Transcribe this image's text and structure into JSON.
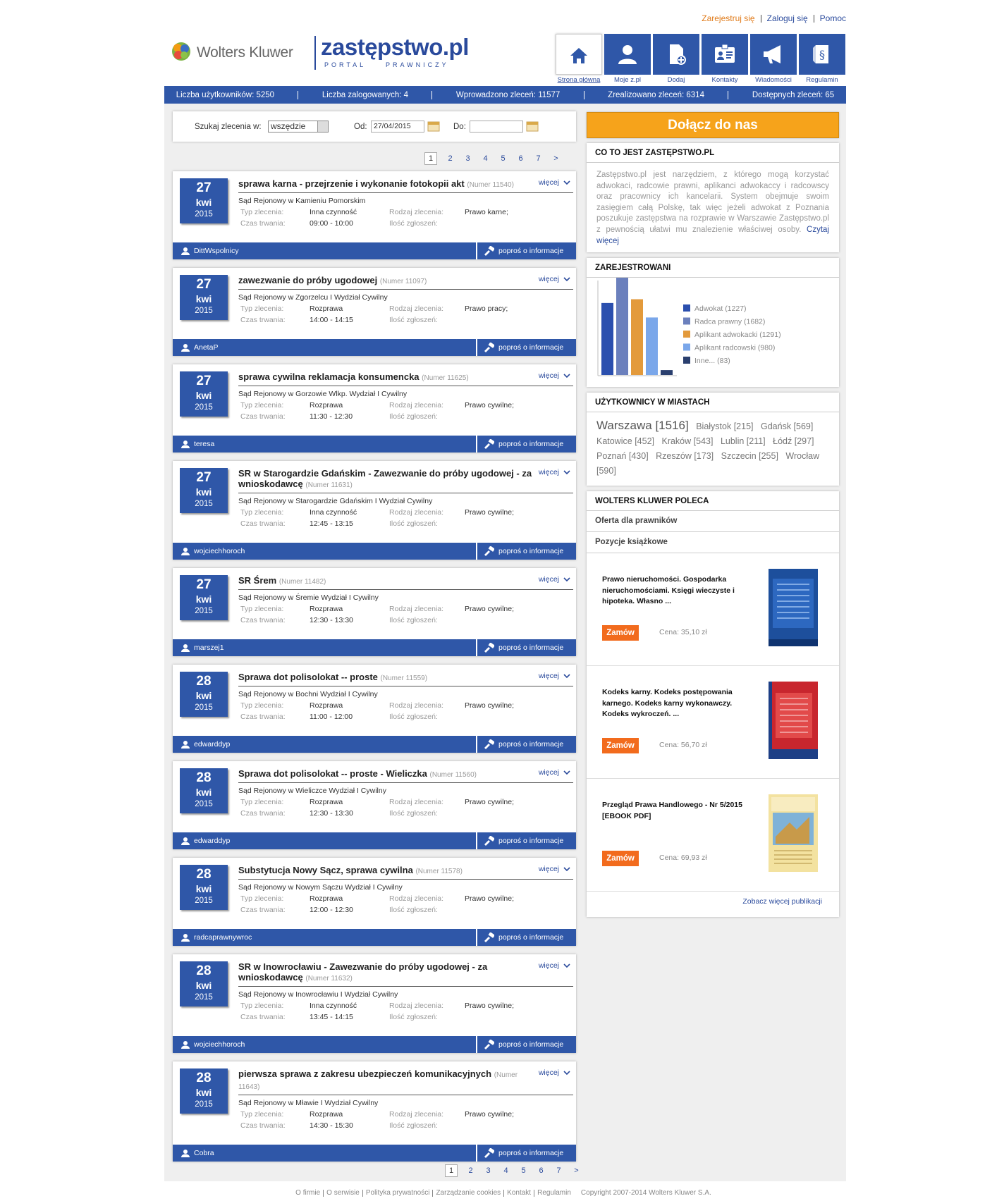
{
  "header": {
    "links": [
      "Zarejestruj się",
      "Zaloguj się",
      "Pomoc"
    ],
    "brand": "Wolters Kluwer",
    "site": "zastępstwo.pl",
    "tagline_left": "PORTAL",
    "tagline_right": "PRAWNICZY",
    "nav": [
      "Strona główna",
      "Moje z.pl",
      "Dodaj",
      "Kontakty",
      "Wiadomości",
      "Regulamin"
    ]
  },
  "stats": [
    "Liczba użytkowników: 5250",
    "Liczba zalogowanych: 4",
    "Wprowadzono zleceń: 11577",
    "Zrealizowano zleceń: 6314",
    "Dostępnych zleceń: 65"
  ],
  "search": {
    "label": "Szukaj zlecenia w:",
    "scope": "wszędzie",
    "from_label": "Od:",
    "from": "27/04/2015",
    "to_label": "Do:"
  },
  "pagination": [
    "1",
    "2",
    "3",
    "4",
    "5",
    "6",
    "7",
    ">"
  ],
  "field_labels": {
    "type": "Typ zlecenia:",
    "kind": "Rodzaj zlecenia:",
    "duration": "Czas trwania:",
    "count": "Ilość zgłoszeń:",
    "more": "więcej",
    "ask": "poproś o informacje"
  },
  "listings": [
    {
      "day": "27",
      "month": "kwi",
      "year": "2015",
      "title": "sprawa karna - przejrzenie i wykonanie fotokopii akt",
      "number": "(Numer 11540)",
      "court": "Sąd Rejonowy w Kamieniu Pomorskim",
      "type": "Inna czynność",
      "kind": "Prawo karne;",
      "time": "09:00 - 10:00",
      "user": "DittWspolnicy"
    },
    {
      "day": "27",
      "month": "kwi",
      "year": "2015",
      "title": "zawezwanie do próby ugodowej",
      "number": "(Numer 11097)",
      "court": "Sąd Rejonowy w Zgorzelcu I Wydział Cywilny",
      "type": "Rozprawa",
      "kind": "Prawo pracy;",
      "time": "14:00 - 14:15",
      "user": "AnetaP"
    },
    {
      "day": "27",
      "month": "kwi",
      "year": "2015",
      "title": "sprawa cywilna reklamacja konsumencka",
      "number": "(Numer 11625)",
      "court": "Sąd Rejonowy w Gorzowie Wlkp. Wydział I Cywilny",
      "type": "Rozprawa",
      "kind": "Prawo cywilne;",
      "time": "11:30 - 12:30",
      "user": "teresa"
    },
    {
      "day": "27",
      "month": "kwi",
      "year": "2015",
      "title": "SR w Starogardzie Gdańskim - Zawezwanie do próby ugodowej - za wnioskodawcę",
      "number": "(Numer 11631)",
      "court": "Sąd Rejonowy w Starogardzie Gdańskim I Wydział Cywilny",
      "type": "Inna czynność",
      "kind": "Prawo cywilne;",
      "time": "12:45 - 13:15",
      "user": "wojciechhoroch"
    },
    {
      "day": "27",
      "month": "kwi",
      "year": "2015",
      "title": "SR Śrem",
      "number": "(Numer 11482)",
      "court": "Sąd Rejonowy w Śremie Wydział I Cywilny",
      "type": "Rozprawa",
      "kind": "Prawo cywilne;",
      "time": "12:30 - 13:30",
      "user": "marszej1"
    },
    {
      "day": "28",
      "month": "kwi",
      "year": "2015",
      "title": "Sprawa dot polisolokat -- proste",
      "number": "(Numer 11559)",
      "court": "Sąd Rejonowy w Bochni Wydział I Cywilny",
      "type": "Rozprawa",
      "kind": "Prawo cywilne;",
      "time": "11:00 - 12:00",
      "user": "edwarddyp"
    },
    {
      "day": "28",
      "month": "kwi",
      "year": "2015",
      "title": "Sprawa dot polisolokat -- proste - Wieliczka",
      "number": "(Numer 11560)",
      "court": "Sąd Rejonowy w Wieliczce Wydział I Cywilny",
      "type": "Rozprawa",
      "kind": "Prawo cywilne;",
      "time": "12:30 - 13:30",
      "user": "edwarddyp"
    },
    {
      "day": "28",
      "month": "kwi",
      "year": "2015",
      "title": "Substytucja Nowy Sącz, sprawa cywilna",
      "number": "(Numer 11578)",
      "court": "Sąd Rejonowy w Nowym Sączu Wydział I Cywilny",
      "type": "Rozprawa",
      "kind": "Prawo cywilne;",
      "time": "12:00 - 12:30",
      "user": "radcaprawnywroc"
    },
    {
      "day": "28",
      "month": "kwi",
      "year": "2015",
      "title": "SR w Inowrocławiu - Zawezwanie do próby ugodowej - za wnioskodawcę",
      "number": "(Numer 11632)",
      "court": "Sąd Rejonowy w Inowrocławiu I Wydział Cywilny",
      "type": "Inna czynność",
      "kind": "Prawo cywilne;",
      "time": "13:45 - 14:15",
      "user": "wojciechhoroch"
    },
    {
      "day": "28",
      "month": "kwi",
      "year": "2015",
      "title": "pierwsza sprawa z zakresu ubezpieczeń komunikacyjnych",
      "number": "(Numer 11643)",
      "court": "Sąd Rejonowy w Mławie I Wydział Cywilny",
      "type": "Rozprawa",
      "kind": "Prawo cywilne;",
      "time": "14:30 - 15:30",
      "user": "Cobra"
    }
  ],
  "sidebar": {
    "join": "Dołącz do nas",
    "about": {
      "title": "CO TO JEST ZASTĘPSTWO.PL",
      "text": "Zastępstwo.pl jest narzędziem, z którego mogą korzystać adwokaci, radcowie prawni, aplikanci adwokaccy i radcowscy oraz pracownicy ich kancelarii. System obejmuje swoim zasięgiem całą Polskę, tak więc jeżeli adwokat z Poznania poszukuje zastępstwa na rozprawie w Warszawie Zastępstwo.pl z pewnością ułatwi mu znalezienie właściwej osoby.",
      "link": "Czytaj więcej"
    },
    "registered": {
      "title": "ZAREJESTROWANI",
      "series": [
        {
          "label": "Adwokat (1227)",
          "value": 1227,
          "color": "#2b4fae"
        },
        {
          "label": "Radca prawny (1682)",
          "value": 1682,
          "color": "#6b80bd"
        },
        {
          "label": "Aplikant adwokacki (1291)",
          "value": 1291,
          "color": "#e39a3b"
        },
        {
          "label": "Aplikant radcowski (980)",
          "value": 980,
          "color": "#7aa7ea"
        },
        {
          "label": "Inne... (83)",
          "value": 83,
          "color": "#2a3f6e"
        }
      ]
    },
    "cities": {
      "title": "UŻYTKOWNICY W MIASTACH",
      "items": [
        "Warszawa [1516]",
        "Białystok [215]",
        "Gdańsk [569]",
        "Katowice [452]",
        "Kraków [543]",
        "Lublin [211]",
        "Łódź [297]",
        "Poznań [430]",
        "Rzeszów [173]",
        "Szczecin [255]",
        "Wrocław [590]"
      ]
    },
    "recommend": {
      "title": "WOLTERS KLUWER POLECA",
      "tabs": [
        "Oferta dla prawników",
        "Pozycje książkowe"
      ],
      "order": "Zamów",
      "books": [
        {
          "title": "Prawo nieruchomości. Gospodarka nieruchomościami. Księgi wieczyste i hipoteka. Własno ...",
          "price": "Cena: 35,10 zł"
        },
        {
          "title": "Kodeks karny. Kodeks postępowania karnego. Kodeks karny wykonawczy. Kodeks wykroczeń. ...",
          "price": "Cena: 56,70 zł"
        },
        {
          "title": "Przegląd Prawa Handlowego - Nr 5/2015 [EBOOK PDF]",
          "price": "Cena: 69,93 zł"
        }
      ],
      "more": "Zobacz więcej publikacji"
    }
  },
  "footer": {
    "links": [
      "O firmie",
      "O serwisie",
      "Polityka prywatności",
      "Zarządzanie cookies",
      "Kontakt",
      "Regulamin"
    ],
    "copyright": "Copyright 2007-2014 Wolters Kluwer S.A."
  }
}
